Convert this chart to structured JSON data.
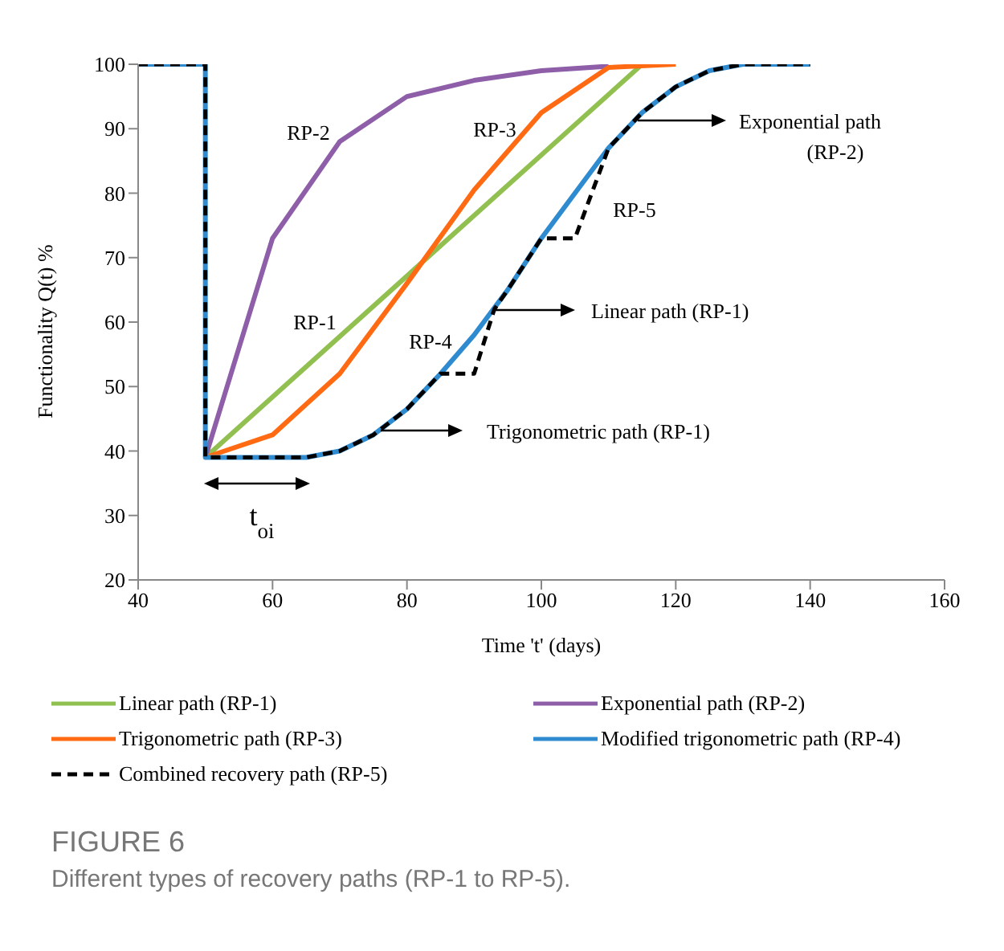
{
  "chart_data": {
    "type": "line",
    "xlabel": "Time 't' (days)",
    "ylabel": "Functionality Q(t) %",
    "xlim": [
      40,
      160
    ],
    "xticks": [
      40,
      60,
      80,
      100,
      120,
      140,
      160
    ],
    "ylim": [
      20,
      100
    ],
    "yticks": [
      20,
      30,
      40,
      50,
      60,
      70,
      80,
      90,
      100
    ],
    "legend": "bottom",
    "marker": "none",
    "series": [
      {
        "name": "Linear path (RP-1)",
        "color": "#92c050",
        "x": [
          50,
          115
        ],
        "values": [
          39,
          100
        ]
      },
      {
        "name": "Exponential path (RP-2)",
        "color": "#8e5ea8",
        "x": [
          50,
          60,
          70,
          80,
          90,
          100,
          110
        ],
        "values": [
          39,
          73,
          88,
          95,
          97.5,
          99,
          99.7
        ]
      },
      {
        "name": "Trigonometric path (RP-3)",
        "color": "#ff6a13",
        "x": [
          50,
          60,
          70,
          80,
          90,
          100,
          110,
          120
        ],
        "values": [
          39,
          42.5,
          52,
          66,
          80.5,
          92.5,
          99.5,
          100
        ]
      },
      {
        "name": "Modified trigonometric path (RP-4)",
        "color": "#2e8bd0",
        "x": [
          40,
          50,
          50,
          60,
          65,
          70,
          75,
          80,
          85,
          90,
          95,
          100,
          105,
          110,
          115,
          120,
          125,
          130,
          140
        ],
        "values": [
          100,
          100,
          39,
          39,
          39,
          40,
          42.5,
          46.5,
          52,
          58,
          65,
          73,
          80,
          87,
          92.5,
          96.5,
          99,
          100,
          100
        ]
      },
      {
        "name": "Combined recovery path (RP-5)",
        "color": "#000000",
        "line_style": "dashed",
        "x": [
          40,
          50,
          50,
          65,
          70,
          75,
          80,
          85,
          90,
          93,
          95,
          100,
          105,
          110,
          115,
          120,
          125,
          130,
          140
        ],
        "values": [
          100,
          100,
          39,
          39,
          40,
          42.5,
          46.5,
          52,
          52,
          62,
          65,
          73,
          73,
          87,
          92.5,
          96.5,
          99,
          100,
          100
        ]
      }
    ],
    "annotations": [
      "RP-2",
      "RP-3",
      "RP-1",
      "RP-4",
      "RP-5",
      "Exponential path\n(RP-2)",
      "Linear path (RP-1)",
      "Trigonometric path (RP-1)",
      "t$_{oi}$",
      "FIGURE 6",
      "Different types of recovery paths (RP-1 to RP-5)."
    ]
  }
}
